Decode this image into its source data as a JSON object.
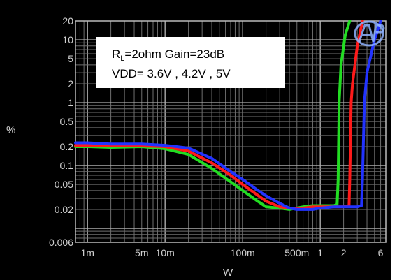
{
  "chart_data": {
    "type": "line",
    "title": "",
    "xlabel": "W",
    "ylabel": "%",
    "x_scale": "log",
    "y_scale": "log",
    "xlim": [
      0.0007,
      7
    ],
    "ylim": [
      0.006,
      20
    ],
    "x_ticks": [
      {
        "value": 0.001,
        "label": "1m"
      },
      {
        "value": 0.005,
        "label": "5m"
      },
      {
        "value": 0.01,
        "label": "10m"
      },
      {
        "value": 0.1,
        "label": "100m"
      },
      {
        "value": 0.5,
        "label": "500m"
      },
      {
        "value": 1,
        "label": "1"
      },
      {
        "value": 2,
        "label": "2"
      },
      {
        "value": 6,
        "label": "6"
      }
    ],
    "y_ticks": [
      {
        "value": 20,
        "label": "20"
      },
      {
        "value": 10,
        "label": "10"
      },
      {
        "value": 5,
        "label": "5"
      },
      {
        "value": 2,
        "label": "2"
      },
      {
        "value": 1,
        "label": "1"
      },
      {
        "value": 0.5,
        "label": "0.5"
      },
      {
        "value": 0.2,
        "label": "0.2"
      },
      {
        "value": 0.1,
        "label": "0.1"
      },
      {
        "value": 0.05,
        "label": "0.05"
      },
      {
        "value": 0.02,
        "label": "0.02"
      },
      {
        "value": 0.006,
        "label": "0.006"
      }
    ],
    "grid": true,
    "annotation": {
      "line1_prefix": "R",
      "line1_sub": "L",
      "line1_rest": "=2ohm Gain=23dB",
      "line2": "VDD= 3.6V , 4.2V , 5V"
    },
    "series": [
      {
        "color": "#22dd22",
        "x": [
          0.0007,
          0.001,
          0.002,
          0.005,
          0.01,
          0.02,
          0.04,
          0.07,
          0.1,
          0.15,
          0.2,
          0.3,
          0.4,
          0.6,
          0.8,
          1,
          1.3,
          1.5,
          1.65,
          1.7,
          1.75,
          1.85,
          2.1,
          2.4
        ],
        "y": [
          0.2,
          0.2,
          0.195,
          0.2,
          0.185,
          0.15,
          0.09,
          0.055,
          0.04,
          0.028,
          0.022,
          0.021,
          0.02,
          0.022,
          0.023,
          0.023,
          0.023,
          0.023,
          0.024,
          0.06,
          1,
          4,
          12,
          20
        ]
      },
      {
        "color": "#ff1a1a",
        "x": [
          0.0007,
          0.001,
          0.002,
          0.005,
          0.01,
          0.02,
          0.04,
          0.07,
          0.1,
          0.15,
          0.2,
          0.3,
          0.4,
          0.6,
          0.8,
          1,
          1.5,
          2,
          2.35,
          2.4,
          2.5,
          2.6,
          3,
          3.5
        ],
        "y": [
          0.21,
          0.21,
          0.205,
          0.205,
          0.2,
          0.17,
          0.11,
          0.07,
          0.05,
          0.035,
          0.027,
          0.022,
          0.021,
          0.021,
          0.022,
          0.022,
          0.022,
          0.022,
          0.023,
          0.06,
          1,
          2,
          8,
          20
        ]
      },
      {
        "color": "#2233ff",
        "x": [
          0.0007,
          0.001,
          0.002,
          0.005,
          0.01,
          0.02,
          0.04,
          0.07,
          0.1,
          0.15,
          0.2,
          0.3,
          0.4,
          0.5,
          0.8,
          1,
          1.5,
          2,
          3,
          3.4,
          3.5,
          3.7,
          4,
          5,
          6
        ],
        "y": [
          0.23,
          0.23,
          0.22,
          0.22,
          0.21,
          0.19,
          0.13,
          0.08,
          0.06,
          0.042,
          0.033,
          0.025,
          0.021,
          0.02,
          0.02,
          0.021,
          0.022,
          0.022,
          0.022,
          0.023,
          0.06,
          1,
          3,
          10,
          20
        ]
      }
    ]
  }
}
